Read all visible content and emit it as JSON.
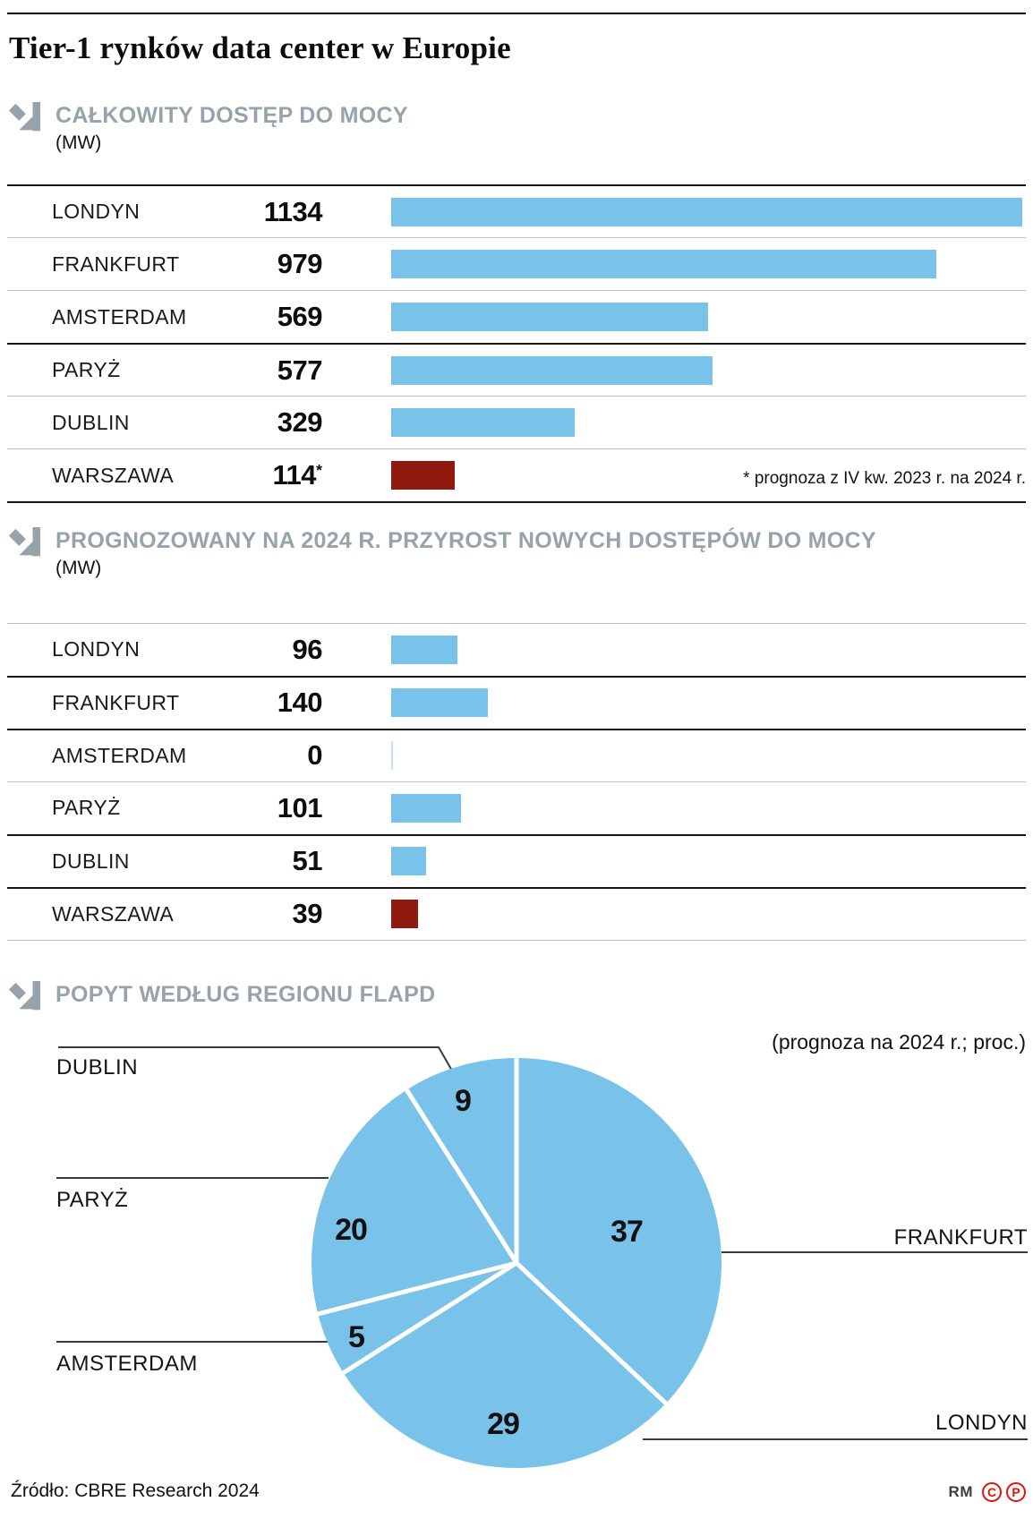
{
  "title": "Tier-1 rynków data center w Europie",
  "colors": {
    "bar_blue": "#79c3ea",
    "bar_zero_blue": "#bfe3f4",
    "bar_red": "#8f1a0d",
    "header_gray": "#97a3ab",
    "credit_red": "#e3120b"
  },
  "chart_data": [
    {
      "type": "bar",
      "title": "CAŁKOWITY DOSTĘP DO MOCY",
      "unit": "(MW)",
      "categories": [
        "LONDYN",
        "FRANKFURT",
        "AMSTERDAM",
        "PARYŻ",
        "DUBLIN",
        "WARSZAWA"
      ],
      "values": [
        1134,
        979,
        569,
        577,
        329,
        114
      ],
      "value_labels": [
        "1134",
        "979",
        "569",
        "577",
        "329",
        "114*"
      ],
      "highlight_index": 5,
      "highlight_note": "* prognoza z IV kw. 2023 r. na 2024 r.",
      "xlim": [
        0,
        1140
      ],
      "grid": false,
      "orientation": "horizontal"
    },
    {
      "type": "bar",
      "title": "PROGNOZOWANY NA 2024 R. PRZYROST NOWYCH DOSTĘPÓW DO MOCY",
      "unit": "(MW)",
      "categories": [
        "LONDYN",
        "FRANKFURT",
        "AMSTERDAM",
        "PARYŻ",
        "DUBLIN",
        "WARSZAWA"
      ],
      "values": [
        96,
        140,
        0,
        101,
        51,
        39
      ],
      "value_labels": [
        "96",
        "140",
        "0",
        "101",
        "51",
        "39"
      ],
      "highlight_index": 5,
      "xlim": [
        0,
        920
      ],
      "grid": false,
      "orientation": "horizontal"
    },
    {
      "type": "pie",
      "title": "POPYT WEDŁUG REGIONU FLAPD",
      "subtitle": "(prognoza na 2024 r.; proc.)",
      "labels": [
        "FRANKFURT",
        "LONDYN",
        "AMSTERDAM",
        "PARYŻ",
        "DUBLIN"
      ],
      "values": [
        37,
        29,
        5,
        20,
        9
      ],
      "start_angle": "12-oclock",
      "direction": "clockwise"
    }
  ],
  "footer": {
    "source": "Źródło: CBRE Research 2024",
    "credit_rm": "RM",
    "credit_c": "C",
    "credit_p": "P"
  }
}
